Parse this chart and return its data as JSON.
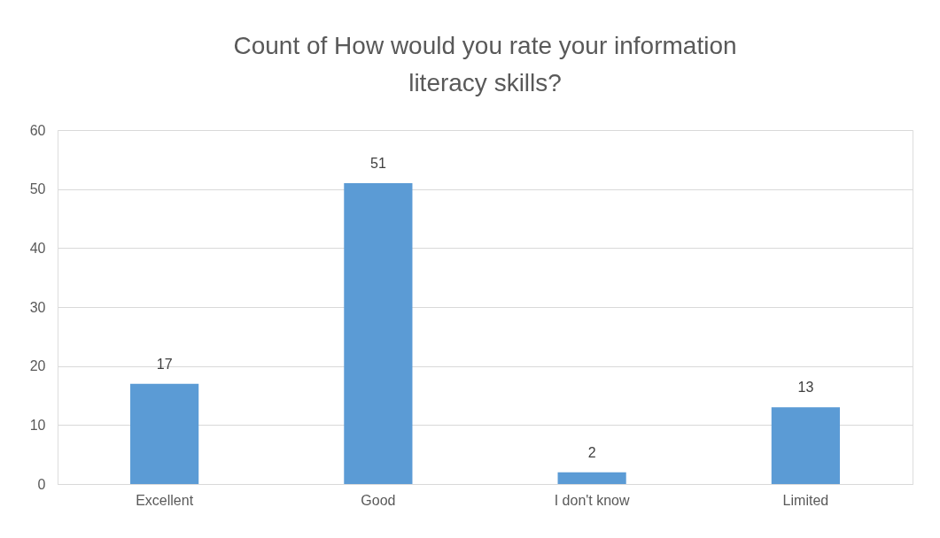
{
  "chart_data": {
    "type": "bar",
    "title": "Count of How would you rate your information literacy skills?",
    "categories": [
      "Excellent",
      "Good",
      "I don't know",
      "Limited"
    ],
    "values": [
      17,
      51,
      2,
      13
    ],
    "color": "#5b9bd5",
    "ylim": [
      0,
      60
    ],
    "yticks": [
      0,
      10,
      20,
      30,
      40,
      50,
      60
    ],
    "grid": "y",
    "data_labels": true
  }
}
